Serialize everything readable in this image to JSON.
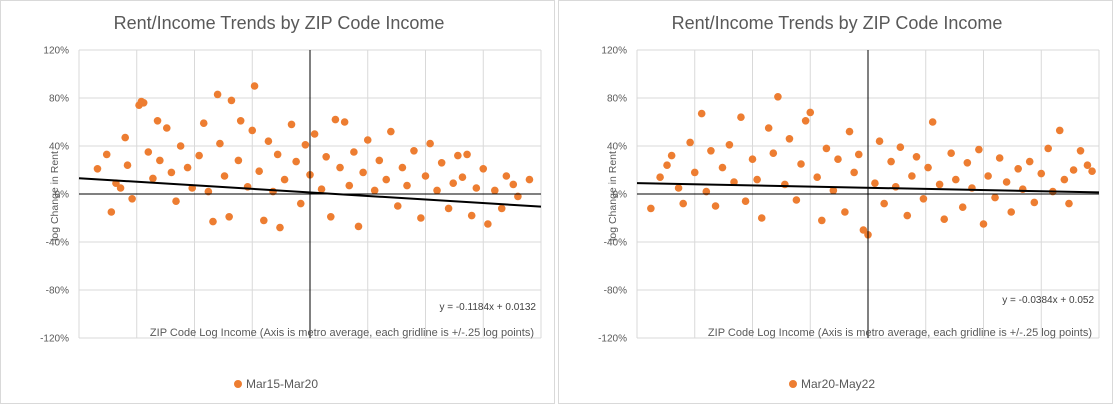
{
  "chart_data": [
    {
      "type": "scatter",
      "title": "Rent/Income Trends by ZIP Code Income",
      "xlabel": "ZIP Code Log Income (Axis is metro average, each gridline is +/-.25 log points)",
      "ylabel": "log Change in Rent",
      "ylim": [
        -1.2,
        1.2
      ],
      "xlim": [
        -1.0,
        1.0
      ],
      "yticks": [
        "120%",
        "80%",
        "40%",
        "0%",
        "-40%",
        "-80%",
        "-120%"
      ],
      "grid": true,
      "legend_position": "bottom",
      "series": [
        {
          "name": "Mar15-Mar20",
          "color": "#ED7D31"
        }
      ],
      "trendline": {
        "slope": -0.1184,
        "intercept": 0.0132,
        "label": "y = -0.1184x + 0.0132"
      },
      "points": [
        [
          -0.92,
          0.21
        ],
        [
          -0.88,
          0.33
        ],
        [
          -0.86,
          -0.15
        ],
        [
          -0.84,
          0.09
        ],
        [
          -0.82,
          0.05
        ],
        [
          -0.8,
          0.47
        ],
        [
          -0.79,
          0.24
        ],
        [
          -0.77,
          -0.04
        ],
        [
          -0.74,
          0.74
        ],
        [
          -0.73,
          0.77
        ],
        [
          -0.72,
          0.76
        ],
        [
          -0.7,
          0.35
        ],
        [
          -0.68,
          0.13
        ],
        [
          -0.66,
          0.61
        ],
        [
          -0.65,
          0.28
        ],
        [
          -0.62,
          0.55
        ],
        [
          -0.6,
          0.18
        ],
        [
          -0.58,
          -0.06
        ],
        [
          -0.56,
          0.4
        ],
        [
          -0.53,
          0.22
        ],
        [
          -0.51,
          0.05
        ],
        [
          -0.48,
          0.32
        ],
        [
          -0.46,
          0.59
        ],
        [
          -0.44,
          0.02
        ],
        [
          -0.42,
          -0.23
        ],
        [
          -0.4,
          0.83
        ],
        [
          -0.39,
          0.42
        ],
        [
          -0.37,
          0.15
        ],
        [
          -0.35,
          -0.19
        ],
        [
          -0.34,
          0.78
        ],
        [
          -0.31,
          0.28
        ],
        [
          -0.3,
          0.61
        ],
        [
          -0.27,
          0.06
        ],
        [
          -0.25,
          0.53
        ],
        [
          -0.24,
          0.9
        ],
        [
          -0.22,
          0.19
        ],
        [
          -0.2,
          -0.22
        ],
        [
          -0.18,
          0.44
        ],
        [
          -0.16,
          0.02
        ],
        [
          -0.14,
          0.33
        ],
        [
          -0.13,
          -0.28
        ],
        [
          -0.11,
          0.12
        ],
        [
          -0.08,
          0.58
        ],
        [
          -0.06,
          0.27
        ],
        [
          -0.04,
          -0.08
        ],
        [
          -0.02,
          0.41
        ],
        [
          0.0,
          0.16
        ],
        [
          0.02,
          0.5
        ],
        [
          0.05,
          0.04
        ],
        [
          0.07,
          0.31
        ],
        [
          0.09,
          -0.19
        ],
        [
          0.11,
          0.62
        ],
        [
          0.13,
          0.22
        ],
        [
          0.15,
          0.6
        ],
        [
          0.17,
          0.07
        ],
        [
          0.19,
          0.35
        ],
        [
          0.21,
          -0.27
        ],
        [
          0.23,
          0.18
        ],
        [
          0.25,
          0.45
        ],
        [
          0.28,
          0.03
        ],
        [
          0.3,
          0.28
        ],
        [
          0.33,
          0.12
        ],
        [
          0.35,
          0.52
        ],
        [
          0.38,
          -0.1
        ],
        [
          0.4,
          0.22
        ],
        [
          0.42,
          0.07
        ],
        [
          0.45,
          0.36
        ],
        [
          0.48,
          -0.2
        ],
        [
          0.5,
          0.15
        ],
        [
          0.52,
          0.42
        ],
        [
          0.55,
          0.03
        ],
        [
          0.57,
          0.26
        ],
        [
          0.6,
          -0.12
        ],
        [
          0.62,
          0.09
        ],
        [
          0.64,
          0.32
        ],
        [
          0.66,
          0.14
        ],
        [
          0.68,
          0.33
        ],
        [
          0.7,
          -0.18
        ],
        [
          0.72,
          0.05
        ],
        [
          0.75,
          0.21
        ],
        [
          0.77,
          -0.25
        ],
        [
          0.8,
          0.03
        ],
        [
          0.83,
          -0.12
        ],
        [
          0.85,
          0.15
        ],
        [
          0.88,
          0.08
        ],
        [
          0.9,
          -0.02
        ],
        [
          0.95,
          0.12
        ]
      ]
    },
    {
      "type": "scatter",
      "title": "Rent/Income Trends by ZIP Code Income",
      "xlabel": "ZIP Code Log Income (Axis is metro average, each gridline is +/-.25 log points)",
      "ylabel": "log Change in Rent",
      "ylim": [
        -1.2,
        1.2
      ],
      "xlim": [
        -1.0,
        1.0
      ],
      "yticks": [
        "120%",
        "80%",
        "40%",
        "0%",
        "-40%",
        "-80%",
        "-120%"
      ],
      "grid": true,
      "legend_position": "bottom",
      "series": [
        {
          "name": "Mar20-May22",
          "color": "#ED7D31"
        }
      ],
      "trendline": {
        "slope": -0.0384,
        "intercept": 0.052,
        "label": "y = -0.0384x + 0.052"
      },
      "points": [
        [
          -0.94,
          -0.12
        ],
        [
          -0.9,
          0.14
        ],
        [
          -0.87,
          0.24
        ],
        [
          -0.85,
          0.32
        ],
        [
          -0.82,
          0.05
        ],
        [
          -0.8,
          -0.08
        ],
        [
          -0.77,
          0.43
        ],
        [
          -0.75,
          0.18
        ],
        [
          -0.72,
          0.67
        ],
        [
          -0.7,
          0.02
        ],
        [
          -0.68,
          0.36
        ],
        [
          -0.66,
          -0.1
        ],
        [
          -0.63,
          0.22
        ],
        [
          -0.6,
          0.41
        ],
        [
          -0.58,
          0.1
        ],
        [
          -0.55,
          0.64
        ],
        [
          -0.53,
          -0.06
        ],
        [
          -0.5,
          0.29
        ],
        [
          -0.48,
          0.12
        ],
        [
          -0.46,
          -0.2
        ],
        [
          -0.43,
          0.55
        ],
        [
          -0.41,
          0.34
        ],
        [
          -0.39,
          0.81
        ],
        [
          -0.36,
          0.08
        ],
        [
          -0.34,
          0.46
        ],
        [
          -0.31,
          -0.05
        ],
        [
          -0.29,
          0.25
        ],
        [
          -0.27,
          0.61
        ],
        [
          -0.25,
          0.68
        ],
        [
          -0.22,
          0.14
        ],
        [
          -0.2,
          -0.22
        ],
        [
          -0.18,
          0.38
        ],
        [
          -0.15,
          0.03
        ],
        [
          -0.13,
          0.29
        ],
        [
          -0.1,
          -0.15
        ],
        [
          -0.08,
          0.52
        ],
        [
          -0.06,
          0.18
        ],
        [
          -0.04,
          0.33
        ],
        [
          -0.02,
          -0.3
        ],
        [
          0.0,
          -0.34
        ],
        [
          0.03,
          0.09
        ],
        [
          0.05,
          0.44
        ],
        [
          0.07,
          -0.08
        ],
        [
          0.1,
          0.27
        ],
        [
          0.12,
          0.06
        ],
        [
          0.14,
          0.39
        ],
        [
          0.17,
          -0.18
        ],
        [
          0.19,
          0.15
        ],
        [
          0.21,
          0.31
        ],
        [
          0.24,
          -0.04
        ],
        [
          0.26,
          0.22
        ],
        [
          0.28,
          0.6
        ],
        [
          0.31,
          0.08
        ],
        [
          0.33,
          -0.21
        ],
        [
          0.36,
          0.34
        ],
        [
          0.38,
          0.12
        ],
        [
          0.41,
          -0.11
        ],
        [
          0.43,
          0.26
        ],
        [
          0.45,
          0.05
        ],
        [
          0.48,
          0.37
        ],
        [
          0.5,
          -0.25
        ],
        [
          0.52,
          0.15
        ],
        [
          0.55,
          -0.03
        ],
        [
          0.57,
          0.3
        ],
        [
          0.6,
          0.1
        ],
        [
          0.62,
          -0.15
        ],
        [
          0.65,
          0.21
        ],
        [
          0.67,
          0.04
        ],
        [
          0.7,
          0.27
        ],
        [
          0.72,
          -0.07
        ],
        [
          0.75,
          0.17
        ],
        [
          0.78,
          0.38
        ],
        [
          0.8,
          0.02
        ],
        [
          0.83,
          0.53
        ],
        [
          0.85,
          0.12
        ],
        [
          0.87,
          -0.08
        ],
        [
          0.89,
          0.2
        ],
        [
          0.92,
          0.36
        ],
        [
          0.95,
          0.24
        ],
        [
          0.97,
          0.19
        ]
      ]
    }
  ]
}
